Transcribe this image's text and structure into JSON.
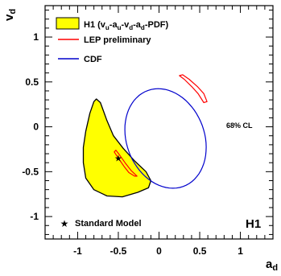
{
  "chart_data": {
    "type": "contour",
    "xlabel": "a",
    "xlabel_sub": "d",
    "ylabel": "v",
    "ylabel_sub": "d",
    "xlim": [
      -1.4,
      1.4
    ],
    "ylim": [
      -1.25,
      1.35
    ],
    "xticks": [
      -1,
      -0.5,
      0,
      0.5,
      1
    ],
    "xtick_labels": [
      "-1",
      "-0.5",
      "0",
      "0.5",
      "1"
    ],
    "yticks": [
      -1,
      -0.5,
      0,
      0.5,
      1
    ],
    "ytick_labels": [
      "-1",
      "-0.5",
      "0",
      "0.5",
      "1"
    ],
    "legend": {
      "position": "top-left",
      "entries": [
        {
          "label": "H1 (v",
          "sub1": "u",
          "mid1": "-a",
          "sub2": "u",
          "mid2": "-v",
          "sub3": "d",
          "mid3": "-a",
          "sub4": "d",
          "tail": "-PDF)",
          "style": "filled",
          "color": "#ffff00"
        },
        {
          "label": "LEP preliminary",
          "style": "line",
          "color": "#ff0000"
        },
        {
          "label": "CDF",
          "style": "line",
          "color": "#0000cc"
        }
      ]
    },
    "cl_label": "68% CL",
    "experiment_label": "H1",
    "sm_label": "Standard Model",
    "standard_model_point": {
      "x": -0.5,
      "y": -0.35
    },
    "series": [
      {
        "name": "H1 (vu-au-vd-ad-PDF)",
        "fill": "#ffff00",
        "stroke": "#000000",
        "points": [
          [
            -0.77,
            0.31
          ],
          [
            -0.72,
            0.27
          ],
          [
            -0.64,
            0.07
          ],
          [
            -0.56,
            -0.1
          ],
          [
            -0.44,
            -0.24
          ],
          [
            -0.3,
            -0.38
          ],
          [
            -0.16,
            -0.5
          ],
          [
            -0.1,
            -0.6
          ],
          [
            -0.13,
            -0.68
          ],
          [
            -0.26,
            -0.73
          ],
          [
            -0.45,
            -0.78
          ],
          [
            -0.64,
            -0.77
          ],
          [
            -0.8,
            -0.7
          ],
          [
            -0.9,
            -0.57
          ],
          [
            -0.93,
            -0.4
          ],
          [
            -0.93,
            -0.23
          ],
          [
            -0.9,
            -0.05
          ],
          [
            -0.85,
            0.15
          ],
          [
            -0.8,
            0.28
          ]
        ]
      },
      {
        "name": "CDF",
        "stroke": "#0000cc",
        "center": [
          0.08,
          -0.13
        ],
        "rx": 0.47,
        "ry": 0.58,
        "angle_deg": 30
      },
      {
        "name": "LEP preliminary (upper)",
        "stroke": "#ff0000",
        "points": [
          [
            0.25,
            0.57
          ],
          [
            0.31,
            0.53
          ],
          [
            0.4,
            0.45
          ],
          [
            0.48,
            0.37
          ],
          [
            0.55,
            0.27
          ],
          [
            0.59,
            0.28
          ],
          [
            0.55,
            0.37
          ],
          [
            0.47,
            0.45
          ],
          [
            0.37,
            0.53
          ],
          [
            0.29,
            0.58
          ]
        ]
      },
      {
        "name": "LEP preliminary (lower)",
        "stroke": "#ff0000",
        "points": [
          [
            -0.55,
            -0.28
          ],
          [
            -0.5,
            -0.35
          ],
          [
            -0.43,
            -0.44
          ],
          [
            -0.37,
            -0.51
          ],
          [
            -0.3,
            -0.55
          ],
          [
            -0.27,
            -0.55
          ],
          [
            -0.34,
            -0.49
          ],
          [
            -0.41,
            -0.41
          ],
          [
            -0.48,
            -0.32
          ],
          [
            -0.53,
            -0.26
          ]
        ]
      }
    ]
  }
}
